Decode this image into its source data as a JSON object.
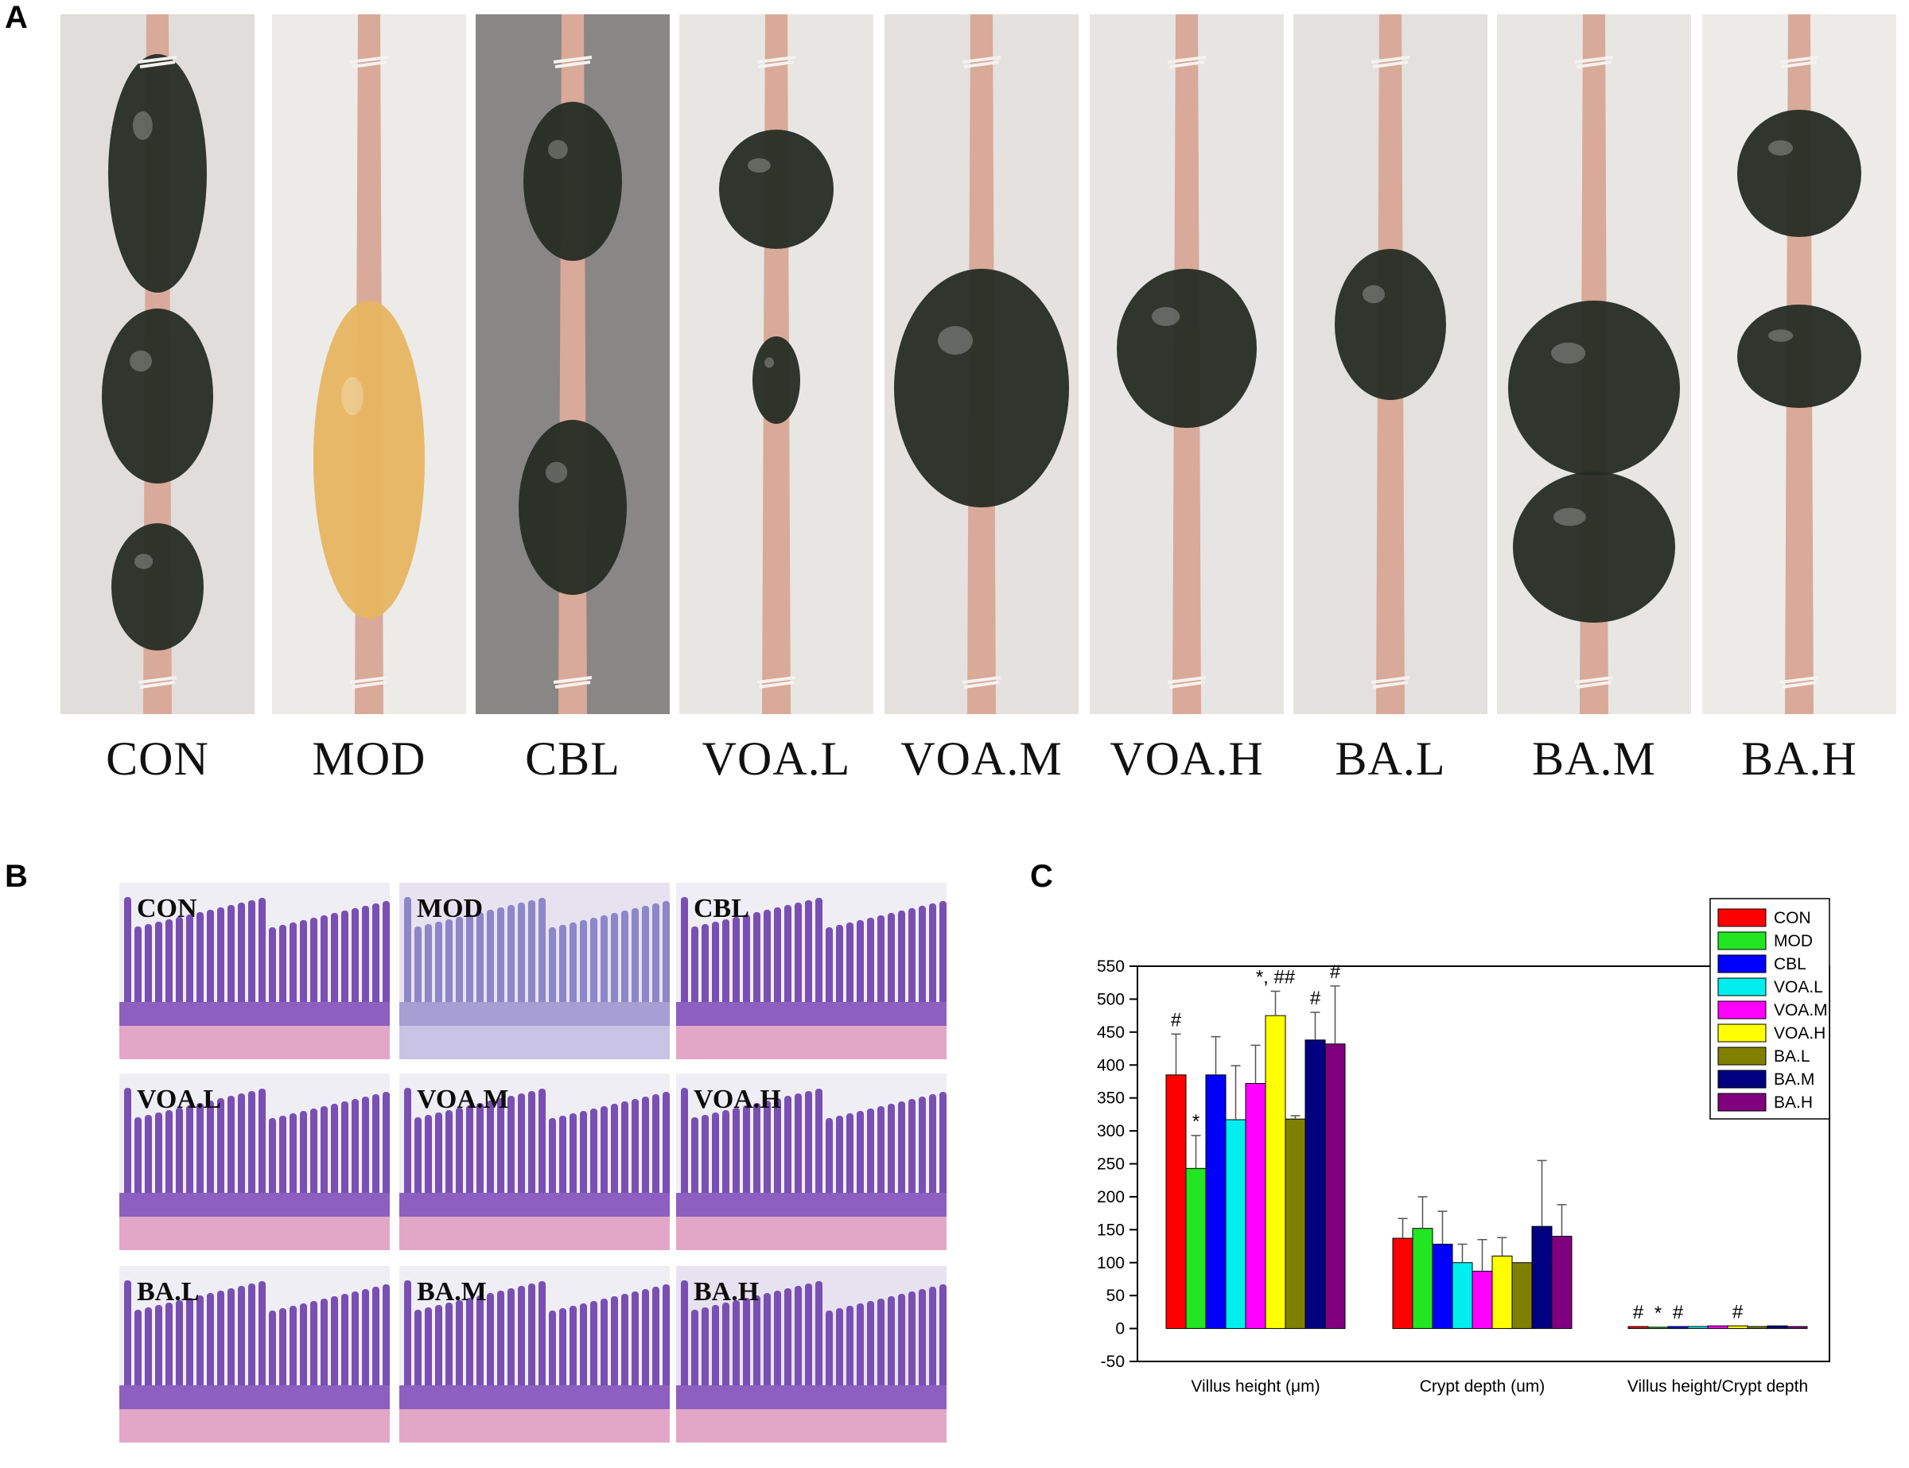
{
  "panel_a": {
    "letter": "A",
    "groups": [
      "CON",
      "MOD",
      "CBL",
      "VOA.L",
      "VOA.M",
      "VOA.H",
      "BA.L",
      "BA.M",
      "BA.H"
    ],
    "bg_colors": [
      "#e0ddda",
      "#ecebe8",
      "#898686",
      "#e7e6e2",
      "#e4e1de",
      "#e6e5e3",
      "#e2e1de",
      "#e8e6e3",
      "#ecebe8"
    ],
    "content_colors": [
      "dark",
      "yellow",
      "dark",
      "dark",
      "dark",
      "dark",
      "dark",
      "dark",
      "dark"
    ]
  },
  "panel_b": {
    "letter": "B",
    "labels": [
      "CON",
      "MOD",
      "CBL",
      "VOA.L",
      "VOA.M",
      "VOA.H",
      "BA.L",
      "BA.M",
      "BA.H"
    ]
  },
  "panel_c": {
    "letter": "C"
  },
  "chart_data": {
    "type": "bar",
    "categories": [
      "Villus height (μm)",
      "Crypt depth (um)",
      "Villus height/Crypt depth"
    ],
    "ylim": [
      -50,
      550
    ],
    "yticks": [
      -50,
      0,
      50,
      100,
      150,
      200,
      250,
      300,
      350,
      400,
      450,
      500,
      550
    ],
    "legend_position": "top-right",
    "grid": false,
    "series": [
      {
        "name": "CON",
        "color": "#ff0000",
        "values": [
          385,
          137,
          3
        ],
        "errors": [
          62,
          30,
          0
        ]
      },
      {
        "name": "MOD",
        "color": "#22e622",
        "values": [
          243,
          152,
          2
        ],
        "errors": [
          50,
          48,
          0
        ]
      },
      {
        "name": "CBL",
        "color": "#0000ff",
        "values": [
          385,
          128,
          3
        ],
        "errors": [
          58,
          50,
          0
        ]
      },
      {
        "name": "VOA.L",
        "color": "#00eeee",
        "values": [
          317,
          100,
          3
        ],
        "errors": [
          82,
          28,
          0
        ]
      },
      {
        "name": "VOA.M",
        "color": "#ff00ff",
        "values": [
          372,
          87,
          4
        ],
        "errors": [
          58,
          48,
          0
        ]
      },
      {
        "name": "VOA.H",
        "color": "#ffff00",
        "values": [
          475,
          110,
          4
        ],
        "errors": [
          37,
          28,
          0
        ]
      },
      {
        "name": "BA.L",
        "color": "#808000",
        "values": [
          318,
          100,
          3
        ],
        "errors": [
          5,
          0,
          0
        ]
      },
      {
        "name": "BA.M",
        "color": "#000080",
        "values": [
          438,
          155,
          4
        ],
        "errors": [
          42,
          100,
          0
        ]
      },
      {
        "name": "BA.H",
        "color": "#800080",
        "values": [
          432,
          140,
          3
        ],
        "errors": [
          88,
          48,
          0
        ]
      }
    ],
    "annotations": [
      {
        "category": 0,
        "series": 0,
        "text": "#"
      },
      {
        "category": 0,
        "series": 1,
        "text": "*"
      },
      {
        "category": 0,
        "series": 5,
        "text": "*, ##"
      },
      {
        "category": 0,
        "series": 7,
        "text": "#"
      },
      {
        "category": 0,
        "series": 8,
        "text": "#"
      },
      {
        "category": 2,
        "series": 0,
        "text": "#"
      },
      {
        "category": 2,
        "series": 1,
        "text": "*"
      },
      {
        "category": 2,
        "series": 2,
        "text": "#"
      },
      {
        "category": 2,
        "series": 5,
        "text": "#"
      }
    ]
  }
}
